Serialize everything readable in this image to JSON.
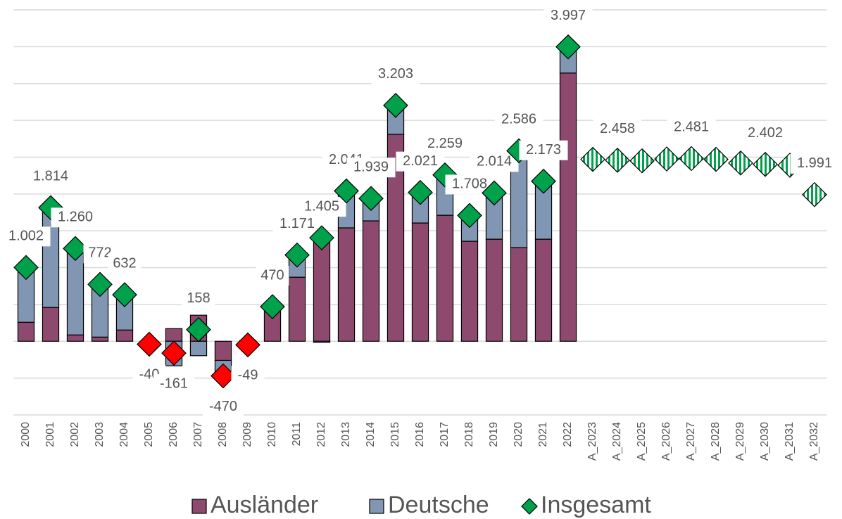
{
  "chart_data": {
    "type": "bar",
    "categories": [
      "2000",
      "2001",
      "2002",
      "2003",
      "2004",
      "2005",
      "2006",
      "2007",
      "2008",
      "2009",
      "2010",
      "2011",
      "2012",
      "2013",
      "2014",
      "2015",
      "2016",
      "2017",
      "2018",
      "2019",
      "2020",
      "2021",
      "2022",
      "A_2023",
      "A_2024",
      "A_2025",
      "A_2026",
      "A_2027",
      "A_2028",
      "A_2029",
      "A_2030",
      "A_2031",
      "A_2032"
    ],
    "series": [
      {
        "name": "Ausländer",
        "color": "#8e4a6e",
        "values": [
          258,
          459,
          86,
          57,
          153,
          -20,
          172,
          354,
          -260,
          10,
          450,
          870,
          1420,
          1540,
          1635,
          2810,
          1606,
          1711,
          1358,
          1386,
          1272,
          1386,
          3642,
          null,
          null,
          null,
          null,
          null,
          null,
          null,
          null,
          null,
          null
        ]
      },
      {
        "name": "Deutsche",
        "color": "#8096b3",
        "values": [
          744,
          1355,
          1174,
          715,
          479,
          -20,
          -333,
          -196,
          -210,
          -59,
          20,
          301,
          -15,
          501,
          304,
          393,
          415,
          548,
          350,
          628,
          1314,
          787,
          355,
          null,
          null,
          null,
          null,
          null,
          null,
          null,
          null,
          null,
          null
        ]
      },
      {
        "name": "Insgesamt",
        "color": "#00a14b",
        "negative_color": "#ff0000",
        "values": [
          1002,
          1814,
          1260,
          772,
          632,
          -40,
          -161,
          158,
          -470,
          -49,
          470,
          1171,
          1405,
          2041,
          1939,
          3203,
          2021,
          2259,
          1708,
          2014,
          2586,
          2173,
          3997,
          2470,
          2458,
          2450,
          2475,
          2481,
          2470,
          2420,
          2402,
          2390,
          1991
        ],
        "value_labels": [
          "1.002",
          "1.814",
          "1.260",
          "772",
          "632",
          "-40",
          "-161",
          "158",
          "-470",
          "-49",
          "470",
          "1.171",
          "1.405",
          "2.041",
          "1.939",
          "3.203",
          "2.021",
          "2.259",
          "1.708",
          "2.014",
          "2.586",
          "2.173",
          "3.997",
          null,
          "2.458",
          null,
          null,
          "2.481",
          null,
          null,
          "2.402",
          null,
          "1.991"
        ]
      }
    ],
    "ylim": [
      -1000,
      4500
    ],
    "yticks": [
      -1000,
      -500,
      0,
      500,
      1000,
      1500,
      2000,
      2500,
      3000,
      3500,
      4000,
      4500
    ],
    "grid": true,
    "legend": "bottom"
  }
}
